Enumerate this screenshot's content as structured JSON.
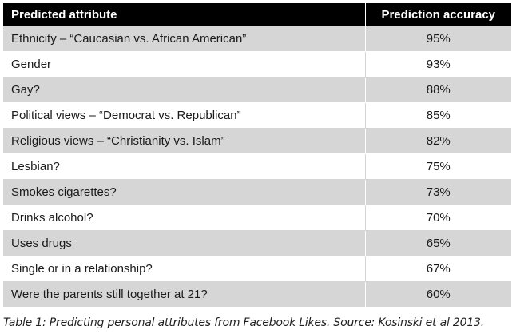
{
  "table": {
    "headers": {
      "attribute": "Predicted attribute",
      "accuracy": "Prediction accuracy"
    },
    "rows": [
      {
        "attribute": "Ethnicity – “Caucasian vs. African American”",
        "accuracy": "95%"
      },
      {
        "attribute": "Gender",
        "accuracy": "93%"
      },
      {
        "attribute": "Gay?",
        "accuracy": "88%"
      },
      {
        "attribute": "Political views – “Democrat vs. Republican”",
        "accuracy": "85%"
      },
      {
        "attribute": "Religious views – “Christianity vs. Islam”",
        "accuracy": "82%"
      },
      {
        "attribute": "Lesbian?",
        "accuracy": "75%"
      },
      {
        "attribute": "Smokes cigarettes?",
        "accuracy": "73%"
      },
      {
        "attribute": "Drinks alcohol?",
        "accuracy": "70%"
      },
      {
        "attribute": "Uses drugs",
        "accuracy": "65%"
      },
      {
        "attribute": "Single or in a relationship?",
        "accuracy": "67%"
      },
      {
        "attribute": "Were the parents still together at 21?",
        "accuracy": "60%"
      }
    ]
  },
  "caption": "Table 1: Predicting personal attributes from Facebook Likes. Source: Kosinski et al 2013.",
  "colors": {
    "header_bg": "#000000",
    "header_text": "#ffffff",
    "shaded_row": "#d6d6d6"
  }
}
